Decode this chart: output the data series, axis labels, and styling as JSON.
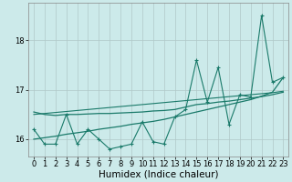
{
  "xlabel": "Humidex (Indice chaleur)",
  "background_color": "#cceaea",
  "grid_color": "#b0c8c8",
  "line_color": "#1a7a6a",
  "x_data": [
    0,
    1,
    2,
    3,
    4,
    5,
    6,
    7,
    8,
    9,
    10,
    11,
    12,
    13,
    14,
    15,
    16,
    17,
    18,
    19,
    20,
    21,
    22,
    23
  ],
  "y_main": [
    16.2,
    15.9,
    15.9,
    16.5,
    15.9,
    16.2,
    16.0,
    15.8,
    15.85,
    15.9,
    16.35,
    15.95,
    15.9,
    16.45,
    16.6,
    17.6,
    16.75,
    17.45,
    16.3,
    16.9,
    16.85,
    18.5,
    17.15,
    17.25
  ],
  "y_smooth": [
    16.55,
    16.5,
    16.48,
    16.5,
    16.5,
    16.51,
    16.52,
    16.52,
    16.53,
    16.54,
    16.55,
    16.57,
    16.58,
    16.6,
    16.65,
    16.7,
    16.72,
    16.75,
    16.77,
    16.8,
    16.83,
    16.86,
    16.9,
    16.95
  ],
  "y_linear1": [
    16.0,
    16.03,
    16.06,
    16.1,
    16.13,
    16.16,
    16.2,
    16.23,
    16.26,
    16.3,
    16.33,
    16.36,
    16.4,
    16.45,
    16.5,
    16.55,
    16.6,
    16.65,
    16.7,
    16.75,
    16.8,
    16.87,
    16.95,
    17.25
  ],
  "y_linear2": [
    16.5,
    16.52,
    16.54,
    16.56,
    16.58,
    16.6,
    16.62,
    16.64,
    16.66,
    16.68,
    16.7,
    16.72,
    16.74,
    16.76,
    16.78,
    16.8,
    16.82,
    16.84,
    16.86,
    16.88,
    16.9,
    16.92,
    16.94,
    16.97
  ],
  "ylim": [
    15.65,
    18.75
  ],
  "yticks": [
    16,
    17,
    18
  ],
  "xlim": [
    -0.5,
    23.5
  ],
  "xticks": [
    0,
    1,
    2,
    3,
    4,
    5,
    6,
    7,
    8,
    9,
    10,
    11,
    12,
    13,
    14,
    15,
    16,
    17,
    18,
    19,
    20,
    21,
    22,
    23
  ],
  "tick_fontsize": 6,
  "xlabel_fontsize": 7.5
}
